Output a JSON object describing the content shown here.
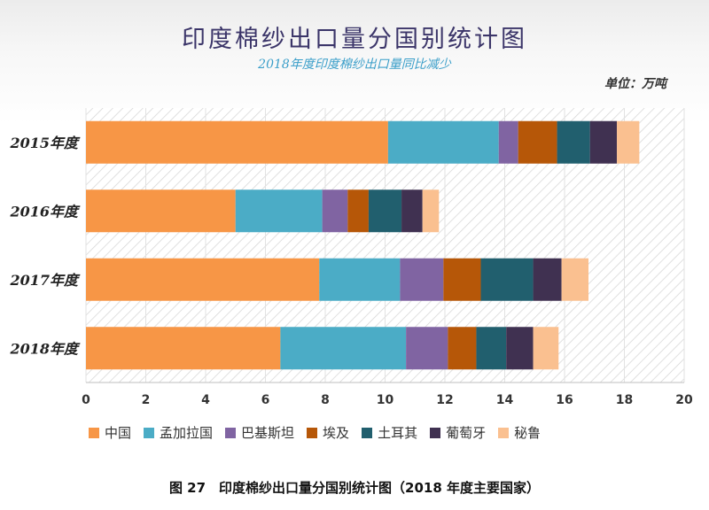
{
  "title": "印度棉纱出口量分国别统计图",
  "subtitle": "2018年度印度棉纱出口量同比减少",
  "unit_label": "单位：万吨",
  "caption": "图 27　印度棉纱出口量分国别统计图（2018 年度主要国家）",
  "chart_data": {
    "type": "bar",
    "orientation": "horizontal",
    "stacked": true,
    "categories": [
      "2015年度",
      "2016年度",
      "2017年度",
      "2018年度"
    ],
    "xlim": [
      0,
      20
    ],
    "xticks": [
      0,
      2,
      4,
      6,
      8,
      10,
      12,
      14,
      16,
      18,
      20
    ],
    "legend_position": "bottom",
    "series": [
      {
        "name": "中国",
        "color": "#F79646",
        "values": [
          10.1,
          5.0,
          7.8,
          6.5
        ]
      },
      {
        "name": "孟加拉国",
        "color": "#4BACC6",
        "values": [
          3.7,
          2.9,
          2.7,
          4.2
        ]
      },
      {
        "name": "巴基斯坦",
        "color": "#8064A2",
        "values": [
          0.65,
          0.85,
          1.45,
          1.4
        ]
      },
      {
        "name": "埃及",
        "color": "#B65708",
        "values": [
          1.3,
          0.7,
          1.25,
          0.95
        ]
      },
      {
        "name": "土耳其",
        "color": "#215F6E",
        "values": [
          1.1,
          1.1,
          1.75,
          1.0
        ]
      },
      {
        "name": "葡萄牙",
        "color": "#403151",
        "values": [
          0.9,
          0.7,
          0.95,
          0.9
        ]
      },
      {
        "name": "秘鲁",
        "color": "#FAC090",
        "values": [
          0.75,
          0.55,
          0.9,
          0.85
        ]
      }
    ]
  }
}
